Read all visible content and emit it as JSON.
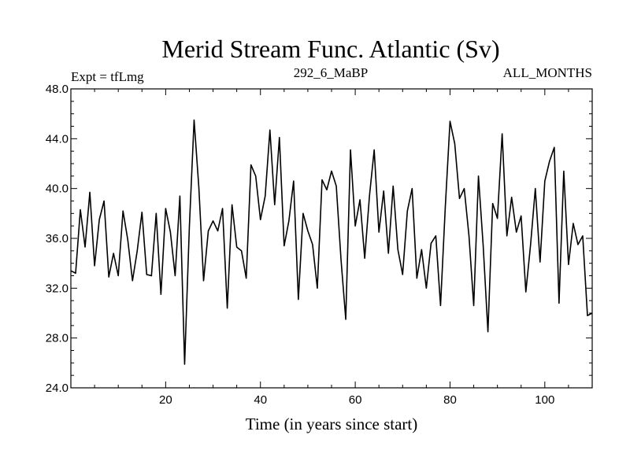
{
  "chart_data": {
    "type": "line",
    "title": "Merid Stream Func. Atlantic (Sv)",
    "subtitle_left": "Expt = tfLmg",
    "subtitle_center": "292_6_MaBP",
    "subtitle_right": "ALL_MONTHS",
    "xlabel": "Time (in years since start)",
    "ylabel": "",
    "xlim": [
      0,
      110
    ],
    "ylim": [
      24,
      48
    ],
    "x_ticks": [
      20,
      40,
      60,
      80,
      100
    ],
    "y_ticks": [
      24,
      28,
      32,
      36,
      40,
      44,
      48
    ],
    "y_tick_labels": [
      "24.0",
      "28.0",
      "32.0",
      "36.0",
      "40.0",
      "44.0",
      "48.0"
    ],
    "grid": false,
    "line_color": "#000000",
    "series": [
      {
        "name": "Merid Stream Func. Atlantic",
        "x": [
          0,
          1,
          2,
          3,
          4,
          5,
          6,
          7,
          8,
          9,
          10,
          11,
          12,
          13,
          14,
          15,
          16,
          17,
          18,
          19,
          20,
          21,
          22,
          23,
          24,
          25,
          26,
          27,
          28,
          29,
          30,
          31,
          32,
          33,
          34,
          35,
          36,
          37,
          38,
          39,
          40,
          41,
          42,
          43,
          44,
          45,
          46,
          47,
          48,
          49,
          50,
          51,
          52,
          53,
          54,
          55,
          56,
          57,
          58,
          59,
          60,
          61,
          62,
          63,
          64,
          65,
          66,
          67,
          68,
          69,
          70,
          71,
          72,
          73,
          74,
          75,
          76,
          77,
          78,
          79,
          80,
          81,
          82,
          83,
          84,
          85,
          86,
          87,
          88,
          89,
          90,
          91,
          92,
          93,
          94,
          95,
          96,
          97,
          98,
          99,
          100,
          101,
          102,
          103,
          104,
          105,
          106,
          107,
          108,
          109,
          110
        ],
        "values": [
          33.4,
          33.2,
          38.3,
          35.3,
          39.7,
          33.8,
          37.5,
          39.0,
          32.9,
          34.8,
          33.0,
          38.2,
          35.9,
          32.6,
          35.0,
          38.1,
          33.1,
          33.0,
          38.0,
          31.5,
          38.4,
          36.5,
          33.0,
          39.4,
          25.9,
          36.9,
          45.5,
          40.1,
          32.6,
          36.6,
          37.4,
          36.6,
          38.4,
          30.4,
          38.7,
          35.3,
          35.0,
          32.8,
          41.9,
          41.0,
          37.5,
          39.4,
          44.7,
          38.7,
          44.1,
          35.4,
          37.4,
          40.6,
          31.1,
          38.0,
          36.6,
          35.5,
          32.0,
          40.7,
          39.9,
          41.4,
          40.2,
          34.3,
          29.5,
          43.1,
          37.0,
          39.1,
          34.4,
          39.4,
          43.1,
          36.5,
          39.8,
          34.8,
          40.2,
          35.1,
          33.1,
          38.2,
          40.0,
          32.8,
          35.1,
          32.0,
          35.6,
          36.2,
          30.6,
          38.5,
          45.4,
          43.6,
          39.2,
          40.0,
          36.2,
          30.6,
          41.0,
          35.4,
          28.5,
          38.8,
          37.6,
          44.4,
          36.2,
          39.3,
          36.5,
          37.8,
          31.7,
          35.5,
          40.0,
          34.1,
          40.6,
          42.2,
          43.3,
          30.8,
          41.4,
          33.9,
          37.2,
          35.5,
          36.2,
          29.8,
          30.0
        ]
      }
    ]
  }
}
